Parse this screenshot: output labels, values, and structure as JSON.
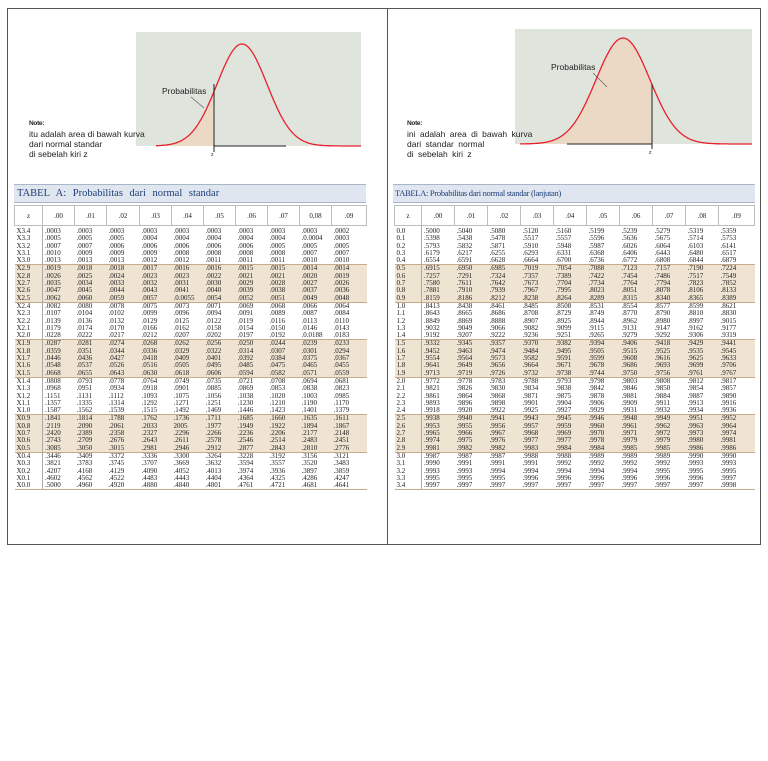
{
  "colors": {
    "curve": "#e8202c",
    "plot_bg": "#dfe5dd",
    "area_fill": "#ecd9c5",
    "title_bg": "#dfe6ef",
    "title_text": "#1f3f7a",
    "shade_row": "#efe3d2"
  },
  "left": {
    "curve_label": "Probabilitas",
    "z_marker": "z",
    "note": {
      "head": "Note:",
      "lines": [
        "itu adalah area di bawah kurva",
        "dari normal standar",
        "di sebelah kiri z"
      ]
    },
    "title": "TABEL A: Probabilitas dari normal standar",
    "headers": [
      "z",
      ".00",
      ".01",
      ".02",
      ".03",
      ".04",
      ".05",
      ".06",
      ".07",
      "0,08",
      ".09"
    ],
    "rows": [
      [
        "X3.4",
        ".0003",
        ".0003",
        ".0003",
        ".0003",
        ".0003",
        ".0003",
        ".0003",
        ".0003",
        ".0003",
        ".0002"
      ],
      [
        "X3.3",
        ".0005",
        ".0005",
        ".0005",
        ".0004",
        ".0004",
        ".0004",
        ".0004",
        ".0004",
        ".0.0004",
        ".0003"
      ],
      [
        "X3.2",
        ".0007",
        ".0007",
        ".0006",
        ".0006",
        ".0006",
        ".0006",
        ".0006",
        ".0005",
        ".0005",
        ".0005"
      ],
      [
        "X3.1",
        ".0010",
        ".0009",
        ".0009",
        ".0009",
        ".0008",
        ".0008",
        ".0008",
        ".0008",
        ".0007",
        ".0007"
      ],
      [
        "X3.0",
        ".0013",
        ".0013",
        ".0013",
        ".0012",
        ".0012",
        ".0011",
        ".0011",
        ".0011",
        ".0010",
        ".0010"
      ],
      [
        "X2.9",
        ".0019",
        ".0018",
        ".0018",
        ".0017",
        ".0016",
        ".0016",
        ".0015",
        ".0015",
        ".0014",
        ".0014"
      ],
      [
        "X2.8",
        ".0026",
        ".0025",
        ".0024",
        ".0023",
        ".0023",
        ".0022",
        ".0021",
        ".0021",
        ".0020",
        ".0019"
      ],
      [
        "X2.7",
        ".0035",
        ".0034",
        ".0033",
        ".0032",
        ".0031",
        ".0030",
        ".0029",
        ".0028",
        ".0027",
        ".0026"
      ],
      [
        "X2.6",
        ".0047",
        ".0045",
        ".0044",
        ".0043",
        ".0041",
        ".0040",
        ".0039",
        ".0038",
        ".0037",
        ".0036"
      ],
      [
        "X2.5",
        ".0062",
        ".0060",
        ".0059",
        ".0057",
        ".0.0055",
        ".0054",
        ".0052",
        ".0051",
        ".0049",
        ".0048"
      ],
      [
        "X2.4",
        ".0082",
        ".0080",
        ".0078",
        ".0075",
        ".0073",
        ".0071",
        ".0069",
        ".0068",
        ".0066",
        ".0064"
      ],
      [
        "X2.3",
        ".0107",
        ".0104",
        ".0102",
        ".0099",
        ".0096",
        ".0094",
        ".0091",
        ".0089",
        ".0087",
        ".0084"
      ],
      [
        "X2.2",
        ".0139",
        ".0136",
        ".0132",
        ".0129",
        ".0125",
        ".0122",
        ".0119",
        ".0116",
        ".0113",
        ".0110"
      ],
      [
        "X2.1",
        ".0179",
        ".0174",
        ".0170",
        ".0166",
        ".0162",
        ".0158",
        ".0154",
        ".0150",
        ".0146",
        ".0143"
      ],
      [
        "X2.0",
        ".0228",
        ".0222",
        ".0217",
        ".0212",
        ".0207",
        ".0202",
        ".0197",
        ".0192",
        ".0.0188",
        ".0183"
      ],
      [
        "X1.9",
        ".0287",
        ".0281",
        ".0274",
        ".0268",
        ".0262",
        ".0256",
        ".0250",
        ".0244",
        ".0239",
        ".0233"
      ],
      [
        "X1.8",
        ".0359",
        ".0351",
        ".0344",
        ".0336",
        ".0329",
        ".0322",
        ".0314",
        ".0307",
        ".0301",
        ".0294"
      ],
      [
        "X1.7",
        ".0446",
        ".0436",
        ".0427",
        ".0418",
        ".0409",
        ".0401",
        ".0392",
        ".0384",
        ".0375",
        ".0367"
      ],
      [
        "X1.6",
        ".0548",
        ".0537",
        ".0526",
        ".0516",
        ".0505",
        ".0495",
        ".0485",
        ".0475",
        ".0465",
        ".0455"
      ],
      [
        "X1.5",
        ".0668",
        ".0655",
        ".0643",
        ".0630",
        ".0618",
        ".0606",
        ".0594",
        ".0582",
        ".0571",
        ".0559"
      ],
      [
        "X1.4",
        ".0808",
        ".0793",
        ".0778",
        ".0764",
        ".0749",
        ".0735",
        ".0721",
        ".0708",
        ".0694",
        ".0681"
      ],
      [
        "X1.3",
        ".0968",
        ".0951",
        ".0934",
        ".0918",
        ".0901",
        ".0885",
        ".0869",
        ".0853",
        ".0838",
        ".0823"
      ],
      [
        "X1.2",
        ".1151",
        ".1131",
        ".1112",
        ".1093",
        ".1075",
        ".1056",
        ".1038",
        ".1020",
        ".1003",
        ".0985"
      ],
      [
        "X1.1",
        ".1357",
        ".1335",
        ".1314",
        ".1292",
        ".1271",
        ".1251",
        ".1230",
        ".1210",
        ".1190",
        ".1170"
      ],
      [
        "X1.0",
        ".1587",
        ".1562",
        ".1539",
        ".1515",
        ".1492",
        ".1469",
        ".1446",
        ".1423",
        ".1401",
        ".1379"
      ],
      [
        "X0.9",
        ".1841",
        ".1814",
        ".1788",
        ".1762",
        ".1736",
        ".1711",
        ".1685",
        ".1660",
        ".1635",
        ".1611"
      ],
      [
        "X0.8",
        ".2119",
        ".2090",
        ".2061",
        ".2033",
        "2005",
        ".1977",
        ".1949",
        ".1922",
        ".1894",
        ".1867"
      ],
      [
        "X0.7",
        ".2420",
        ".2389",
        ".2358",
        ".2327",
        ".2296",
        ".2266",
        ".2236",
        ".2206",
        ".2177",
        ".2148"
      ],
      [
        "X0.6",
        ".2743",
        ".2709",
        ".2676",
        ".2643",
        ".2611",
        ".2578",
        ".2546",
        ".2514",
        ".2483",
        ".2451"
      ],
      [
        "X0.5",
        ".3085",
        ".3050",
        ".3015",
        ".2981",
        ".2946",
        ".2912",
        ".2877",
        ".2843",
        ".2810",
        ".2776"
      ],
      [
        "X0.4",
        ".3446",
        ".3409",
        ".3372",
        ".3336",
        ".3300",
        ".3264",
        ".3228",
        ".3192",
        ".3156",
        ".3121"
      ],
      [
        "X0.3",
        ".3821",
        ".3783",
        ".3745",
        ".3707",
        ".3669",
        ".3632",
        ".3594",
        ".3557",
        ".3520",
        ".3483"
      ],
      [
        "X0.2",
        ".4207",
        ".4168",
        ".4129",
        ".4090",
        ".4052",
        ".4013",
        ".3974",
        ".3936",
        ".3897",
        ".3859"
      ],
      [
        "X0.1",
        ".4602",
        ".4562",
        ".4522",
        ".4483",
        ".4443",
        ".4404",
        ".4364",
        ".4325",
        ".4286",
        ".4247"
      ],
      [
        "X0.0",
        ".5000",
        ".4960",
        ".4920",
        ".4880",
        ".4840",
        ".4801",
        ".4761",
        ".4721",
        ".4681",
        ".4641"
      ]
    ]
  },
  "right": {
    "curve_label": "Probabilitas",
    "z_marker": "z",
    "note": {
      "head": "Note:",
      "lines": [
        "ini adalah area di bawah kurva",
        "dari standar normal",
        "di sebelah kiri z"
      ]
    },
    "title": "TABELA: Probabilitas dari normal standar (lanjutan)",
    "headers": [
      "z",
      ".00",
      ".01",
      ".02",
      ".03",
      ".04",
      ".05",
      ".06",
      ".07",
      ".08",
      ".09"
    ],
    "rows": [
      [
        "0.0",
        ".5000",
        ".5040",
        ".5080",
        ".5120",
        ".5160",
        ".5199",
        ".5239",
        ".5279",
        ".5319",
        ".5359"
      ],
      [
        "0.1",
        ".5398",
        ".5438",
        ".5478",
        ".5517",
        ".5557",
        ".5596",
        ".5636",
        ".5675",
        ".5714",
        ".5753"
      ],
      [
        "0.2",
        ".5793",
        ".5832",
        ".5871",
        ".5910",
        ".5948",
        ".5987",
        ".6026",
        ".6064",
        ".6103",
        ".6141"
      ],
      [
        "0.3",
        ".6179",
        ".6217",
        ".6255",
        ".6293",
        ".6331",
        ".6368",
        ".6406",
        ".6443",
        ".6480",
        ".6517"
      ],
      [
        "0.4",
        ".6554",
        ".6591",
        ".6628",
        ".6664",
        ".6700",
        ".6736",
        ".6772",
        ".6808",
        ".6844",
        ".6879"
      ],
      [
        "0.5",
        ".6915",
        ".6950",
        ".6985",
        ".7019",
        ".7054",
        ".7088",
        ".7123",
        ".7157",
        ".7190",
        ".7224"
      ],
      [
        "0.6",
        ".7257",
        ".7291",
        ".7324",
        ".7357",
        ".7389",
        ".7422",
        ".7454",
        ".7486",
        ".7517",
        ".7549"
      ],
      [
        "0.7",
        ".7580",
        ".7611",
        ".7642",
        ".7673",
        ".7704",
        ".7734",
        ".7764",
        ".7794",
        ".7823",
        ".7852"
      ],
      [
        "0.8",
        ".7881",
        ".7910",
        ".7939",
        ".7967",
        ".7995",
        ".8023",
        ".8051",
        ".8078",
        ".8106",
        ".8133"
      ],
      [
        "0.9",
        ".8159",
        ".8186",
        ".8212",
        ".8238",
        ".8264",
        ".8289",
        ".8315",
        ".8340",
        ".8365",
        ".8389"
      ],
      [
        "1.0",
        ".8413",
        ".8438",
        ".8461",
        ".8485",
        ".8508",
        ".8531",
        ".8554",
        ".8577",
        ".8599",
        ".8621"
      ],
      [
        "1.1",
        ".8643",
        ".8665",
        ".8686",
        ".8708",
        ".8729",
        ".8749",
        ".8770",
        ".8790",
        ".8810",
        ".8830"
      ],
      [
        "1.2",
        ".8849",
        ".8869",
        ".8888",
        ".8907",
        ".8925",
        ".8944",
        ".8962",
        ".8980",
        ".8997",
        ".9015"
      ],
      [
        "1.3",
        ".9032",
        ".9049",
        ".9066",
        ".9082",
        ".9099",
        ".9115",
        ".9131",
        ".9147",
        ".9162",
        ".9177"
      ],
      [
        "1.4",
        ".9192",
        ".9207",
        ".9222",
        ".9236",
        ".9251",
        ".9265",
        ".9279",
        ".9292",
        ".9306",
        ".9319"
      ],
      [
        "1.5",
        ".9332",
        ".9345",
        ".9357",
        ".9370",
        ".9382",
        ".9394",
        ".9406",
        ".9418",
        ".9429",
        ".9441"
      ],
      [
        "1.6",
        ".9452",
        ".9463",
        ".9474",
        ".9484",
        ".9495",
        ".9505",
        ".9515",
        ".9525",
        ".9535",
        ".9545"
      ],
      [
        "1.7",
        ".9554",
        ".9564",
        ".9573",
        ".9582",
        ".9591",
        ".9599",
        ".9608",
        ".9616",
        ".9625",
        ".9633"
      ],
      [
        "1.8",
        ".9641",
        ".9649",
        ".9656",
        ".9664",
        ".9671",
        ".9678",
        ".9686",
        ".9693",
        ".9699",
        ".9706"
      ],
      [
        "1.9",
        ".9713",
        ".9719",
        ".9726",
        ".9732",
        ".9738",
        ".9744",
        ".9750",
        ".9756",
        ".9761",
        ".9767"
      ],
      [
        "2.0",
        ".9772",
        ".9778",
        ".9783",
        ".9788",
        ".9793",
        ".9798",
        ".9803",
        ".9808",
        ".9812",
        ".9817"
      ],
      [
        "2.1",
        ".9821",
        ".9826",
        ".9830",
        ".9834",
        ".9838",
        ".9842",
        ".9846",
        ".9850",
        ".9854",
        ".9857"
      ],
      [
        "2.2",
        ".9861",
        ".9864",
        ".9868",
        ".9871",
        ".9875",
        ".9878",
        ".9881",
        ".9884",
        ".9887",
        ".9890"
      ],
      [
        "2.3",
        ".9893",
        ".9896",
        ".9898",
        ".9901",
        ".9904",
        ".9906",
        ".9909",
        ".9911",
        ".9913",
        ".9916"
      ],
      [
        "2.4",
        ".9918",
        ".9920",
        ".9922",
        ".9925",
        ".9927",
        ".9929",
        ".9931",
        ".9932",
        ".9934",
        ".9936"
      ],
      [
        "2.5",
        ".9938",
        ".9940",
        ".9941",
        ".9943",
        ".9945",
        ".9946",
        ".9948",
        ".9949",
        ".9951",
        ".9952"
      ],
      [
        "2.6",
        ".9953",
        ".9955",
        ".9956",
        ".9957",
        ".9959",
        ".9960",
        ".9961",
        ".9962",
        ".9963",
        ".9964"
      ],
      [
        "2.7",
        ".9965",
        ".9966",
        ".9967",
        ".9968",
        ".9969",
        ".9970",
        ".9971",
        ".9972",
        ".9973",
        ".9974"
      ],
      [
        "2.8",
        ".9974",
        ".9975",
        ".9976",
        ".9977",
        ".9977",
        ".9978",
        ".9979",
        ".9979",
        ".9980",
        ".9981"
      ],
      [
        "2.9",
        ".9981",
        ".9982",
        ".9982",
        ".9983",
        ".9984",
        ".9984",
        ".9985",
        ".9985",
        ".9986",
        ".9986"
      ],
      [
        "3.0",
        ".9987",
        ".9987",
        ".9987",
        ".9988",
        ".9988",
        ".9989",
        ".9989",
        ".9989",
        ".9990",
        ".9990"
      ],
      [
        "3.1",
        ".9990",
        ".9991",
        ".9991",
        ".9991",
        ".9992",
        ".9992",
        ".9992",
        ".9992",
        ".9993",
        ".9993"
      ],
      [
        "3.2",
        ".9993",
        ".9993",
        ".9994",
        ".9994",
        ".9994",
        ".9994",
        ".9994",
        ".9995",
        ".9995",
        ".9995"
      ],
      [
        "3.3",
        ".9995",
        ".9995",
        ".9995",
        ".9996",
        ".9996",
        ".9996",
        ".9996",
        ".9996",
        ".9996",
        ".9997"
      ],
      [
        "3.4",
        ".9997",
        ".9997",
        ".9997",
        ".9997",
        ".9997",
        ".9997",
        ".9997",
        ".9997",
        ".9997",
        ".9998"
      ]
    ]
  }
}
